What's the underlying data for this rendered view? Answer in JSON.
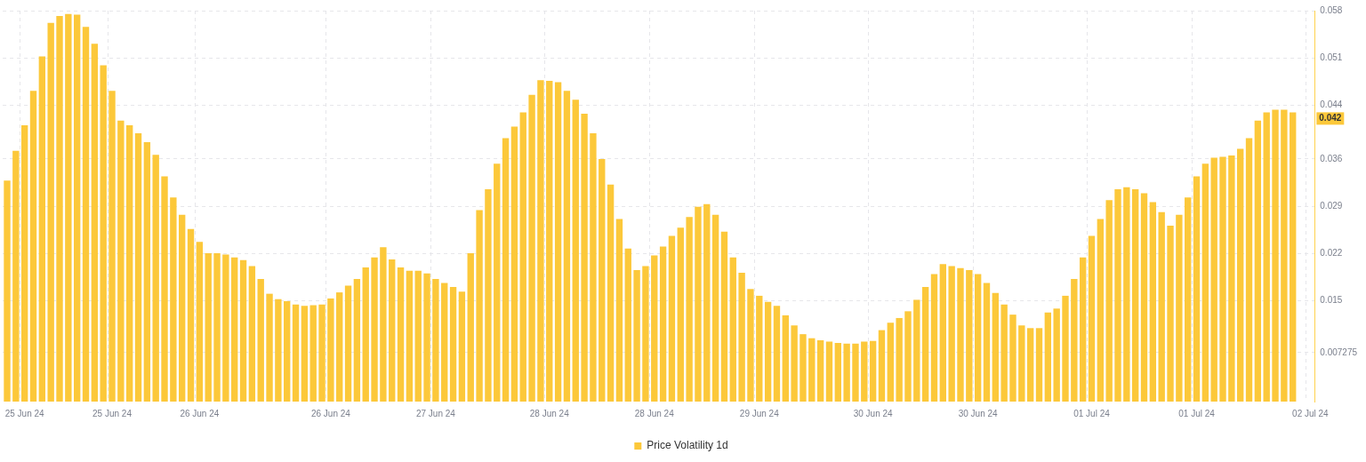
{
  "chart_data": {
    "type": "bar",
    "categories": [
      null,
      null,
      "25 Jun 24",
      null,
      null,
      null,
      null,
      null,
      null,
      null,
      null,
      null,
      "25 Jun 24",
      null,
      null,
      null,
      null,
      null,
      null,
      null,
      null,
      null,
      "26 Jun 24",
      null,
      null,
      null,
      null,
      null,
      null,
      null,
      null,
      null,
      null,
      null,
      null,
      null,
      null,
      "26 Jun 24",
      null,
      null,
      null,
      null,
      null,
      null,
      null,
      null,
      null,
      null,
      null,
      "27 Jun 24",
      null,
      null,
      null,
      null,
      null,
      null,
      null,
      null,
      null,
      null,
      null,
      null,
      "28 Jun 24",
      null,
      null,
      null,
      null,
      null,
      null,
      null,
      null,
      null,
      null,
      null,
      "28 Jun 24",
      null,
      null,
      null,
      null,
      null,
      null,
      null,
      null,
      null,
      null,
      null,
      "29 Jun 24",
      null,
      null,
      null,
      null,
      null,
      null,
      null,
      null,
      null,
      null,
      null,
      null,
      "30 Jun 24",
      null,
      null,
      null,
      null,
      null,
      null,
      null,
      null,
      null,
      null,
      null,
      "30 Jun 24",
      null,
      null,
      null,
      null,
      null,
      null,
      null,
      null,
      null,
      null,
      null,
      null,
      "01 Jul 24",
      null,
      null,
      null,
      null,
      null,
      null,
      null,
      null,
      null,
      null,
      null,
      "01 Jul 24",
      null,
      null,
      null,
      null,
      null,
      null,
      null,
      null,
      null,
      null,
      null,
      null,
      "02 Jul 24"
    ],
    "series": [
      {
        "name": "Price Volatility 1d",
        "color": "#fcc83a",
        "values": [
          0.0328,
          0.0372,
          0.041,
          0.0461,
          0.0512,
          0.0562,
          0.0572,
          0.0575,
          0.0574,
          0.0556,
          0.0531,
          0.0499,
          0.0461,
          0.0417,
          0.041,
          0.0398,
          0.0385,
          0.0366,
          0.0334,
          0.0303,
          0.0277,
          0.0256,
          0.0237,
          0.022,
          0.022,
          0.0218,
          0.0214,
          0.021,
          0.0201,
          0.0182,
          0.016,
          0.0152,
          0.0149,
          0.0144,
          0.0142,
          0.0143,
          0.0144,
          0.0153,
          0.0162,
          0.0172,
          0.0182,
          0.0199,
          0.0214,
          0.0229,
          0.0211,
          0.0199,
          0.0194,
          0.0194,
          0.019,
          0.0182,
          0.0176,
          0.017,
          0.0163,
          0.022,
          0.0284,
          0.0315,
          0.0353,
          0.0391,
          0.0408,
          0.0429,
          0.0455,
          0.0477,
          0.0476,
          0.0474,
          0.0461,
          0.0448,
          0.0427,
          0.0398,
          0.036,
          0.0322,
          0.0271,
          0.0227,
          0.0195,
          0.0201,
          0.0217,
          0.023,
          0.0246,
          0.0258,
          0.0274,
          0.0289,
          0.0293,
          0.0277,
          0.0252,
          0.0214,
          0.0191,
          0.0167,
          0.0157,
          0.0148,
          0.0142,
          0.0128,
          0.0113,
          0.01,
          0.0094,
          0.0091,
          0.0089,
          0.0087,
          0.0086,
          0.0086,
          0.0089,
          0.009,
          0.0106,
          0.0117,
          0.0124,
          0.0134,
          0.0151,
          0.017,
          0.0189,
          0.0204,
          0.0201,
          0.0198,
          0.0195,
          0.0189,
          0.0176,
          0.0161,
          0.0144,
          0.0129,
          0.0113,
          0.0109,
          0.0109,
          0.0132,
          0.0138,
          0.0157,
          0.0182,
          0.0214,
          0.0246,
          0.0271,
          0.0299,
          0.0315,
          0.0318,
          0.0315,
          0.0309,
          0.0296,
          0.0281,
          0.0261,
          0.0277,
          0.0303,
          0.0334,
          0.0353,
          0.0362,
          0.0363,
          0.0365,
          0.0375,
          0.0391,
          0.0417,
          0.0429,
          0.0433,
          0.0433,
          0.0429,
          null,
          null
        ]
      }
    ],
    "ylim": [
      0,
      0.058
    ],
    "yticks": [
      0.058,
      0.051,
      0.044,
      0.036,
      0.029,
      0.022,
      0.015,
      0.007275
    ],
    "annotations": [
      {
        "text": "0.042",
        "y": 0.042
      }
    ],
    "grid": true,
    "legend": "bottom"
  }
}
